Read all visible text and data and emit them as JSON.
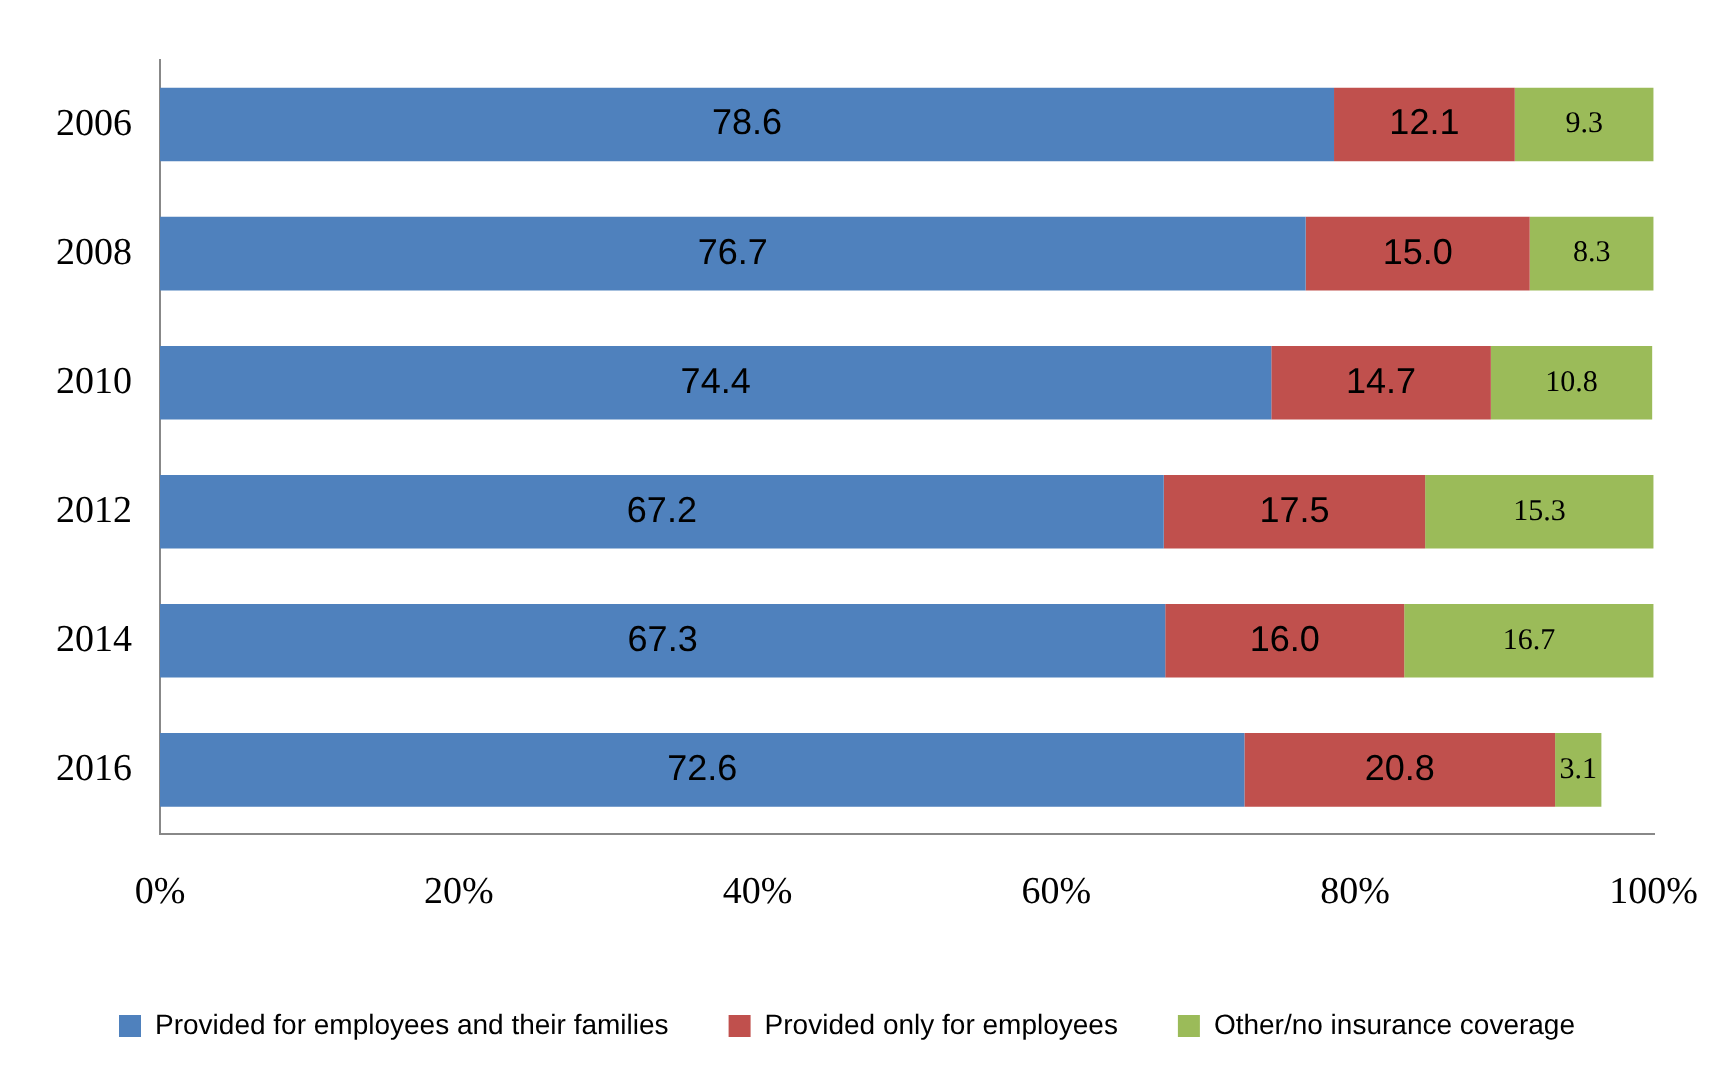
{
  "chart_data": {
    "type": "bar",
    "orientation": "horizontal",
    "stacked": true,
    "categories": [
      "2006",
      "2008",
      "2010",
      "2012",
      "2014",
      "2016"
    ],
    "series": [
      {
        "name": "Provided for employees and their families",
        "color": "#4f81bd",
        "values": [
          78.6,
          76.7,
          74.4,
          67.2,
          67.3,
          72.6
        ],
        "value_labels": [
          "78.6",
          "76.7",
          "74.4",
          "67.2",
          "67.3",
          "72.6"
        ]
      },
      {
        "name": "Provided only for employees",
        "color": "#c0504d",
        "values": [
          12.1,
          15.0,
          14.7,
          17.5,
          16.0,
          20.8
        ],
        "value_labels": [
          "12.1",
          "15.0",
          "14.7",
          "17.5",
          "16.0",
          "20.8"
        ]
      },
      {
        "name": "Other/no insurance coverage",
        "color": "#9bbb59",
        "values": [
          9.3,
          8.3,
          10.8,
          15.3,
          16.7,
          3.1
        ],
        "value_labels": [
          "9.3",
          "8.3",
          "10.8",
          "15.3",
          "16.7",
          "3.1"
        ]
      }
    ],
    "xlim": [
      0,
      100
    ],
    "xticks": [
      {
        "value": 0,
        "label": "0%"
      },
      {
        "value": 20,
        "label": "20%"
      },
      {
        "value": 40,
        "label": "40%"
      },
      {
        "value": 60,
        "label": "60%"
      },
      {
        "value": 80,
        "label": "80%"
      },
      {
        "value": 100,
        "label": "100%"
      }
    ],
    "grid": false,
    "legend": "bottom"
  }
}
